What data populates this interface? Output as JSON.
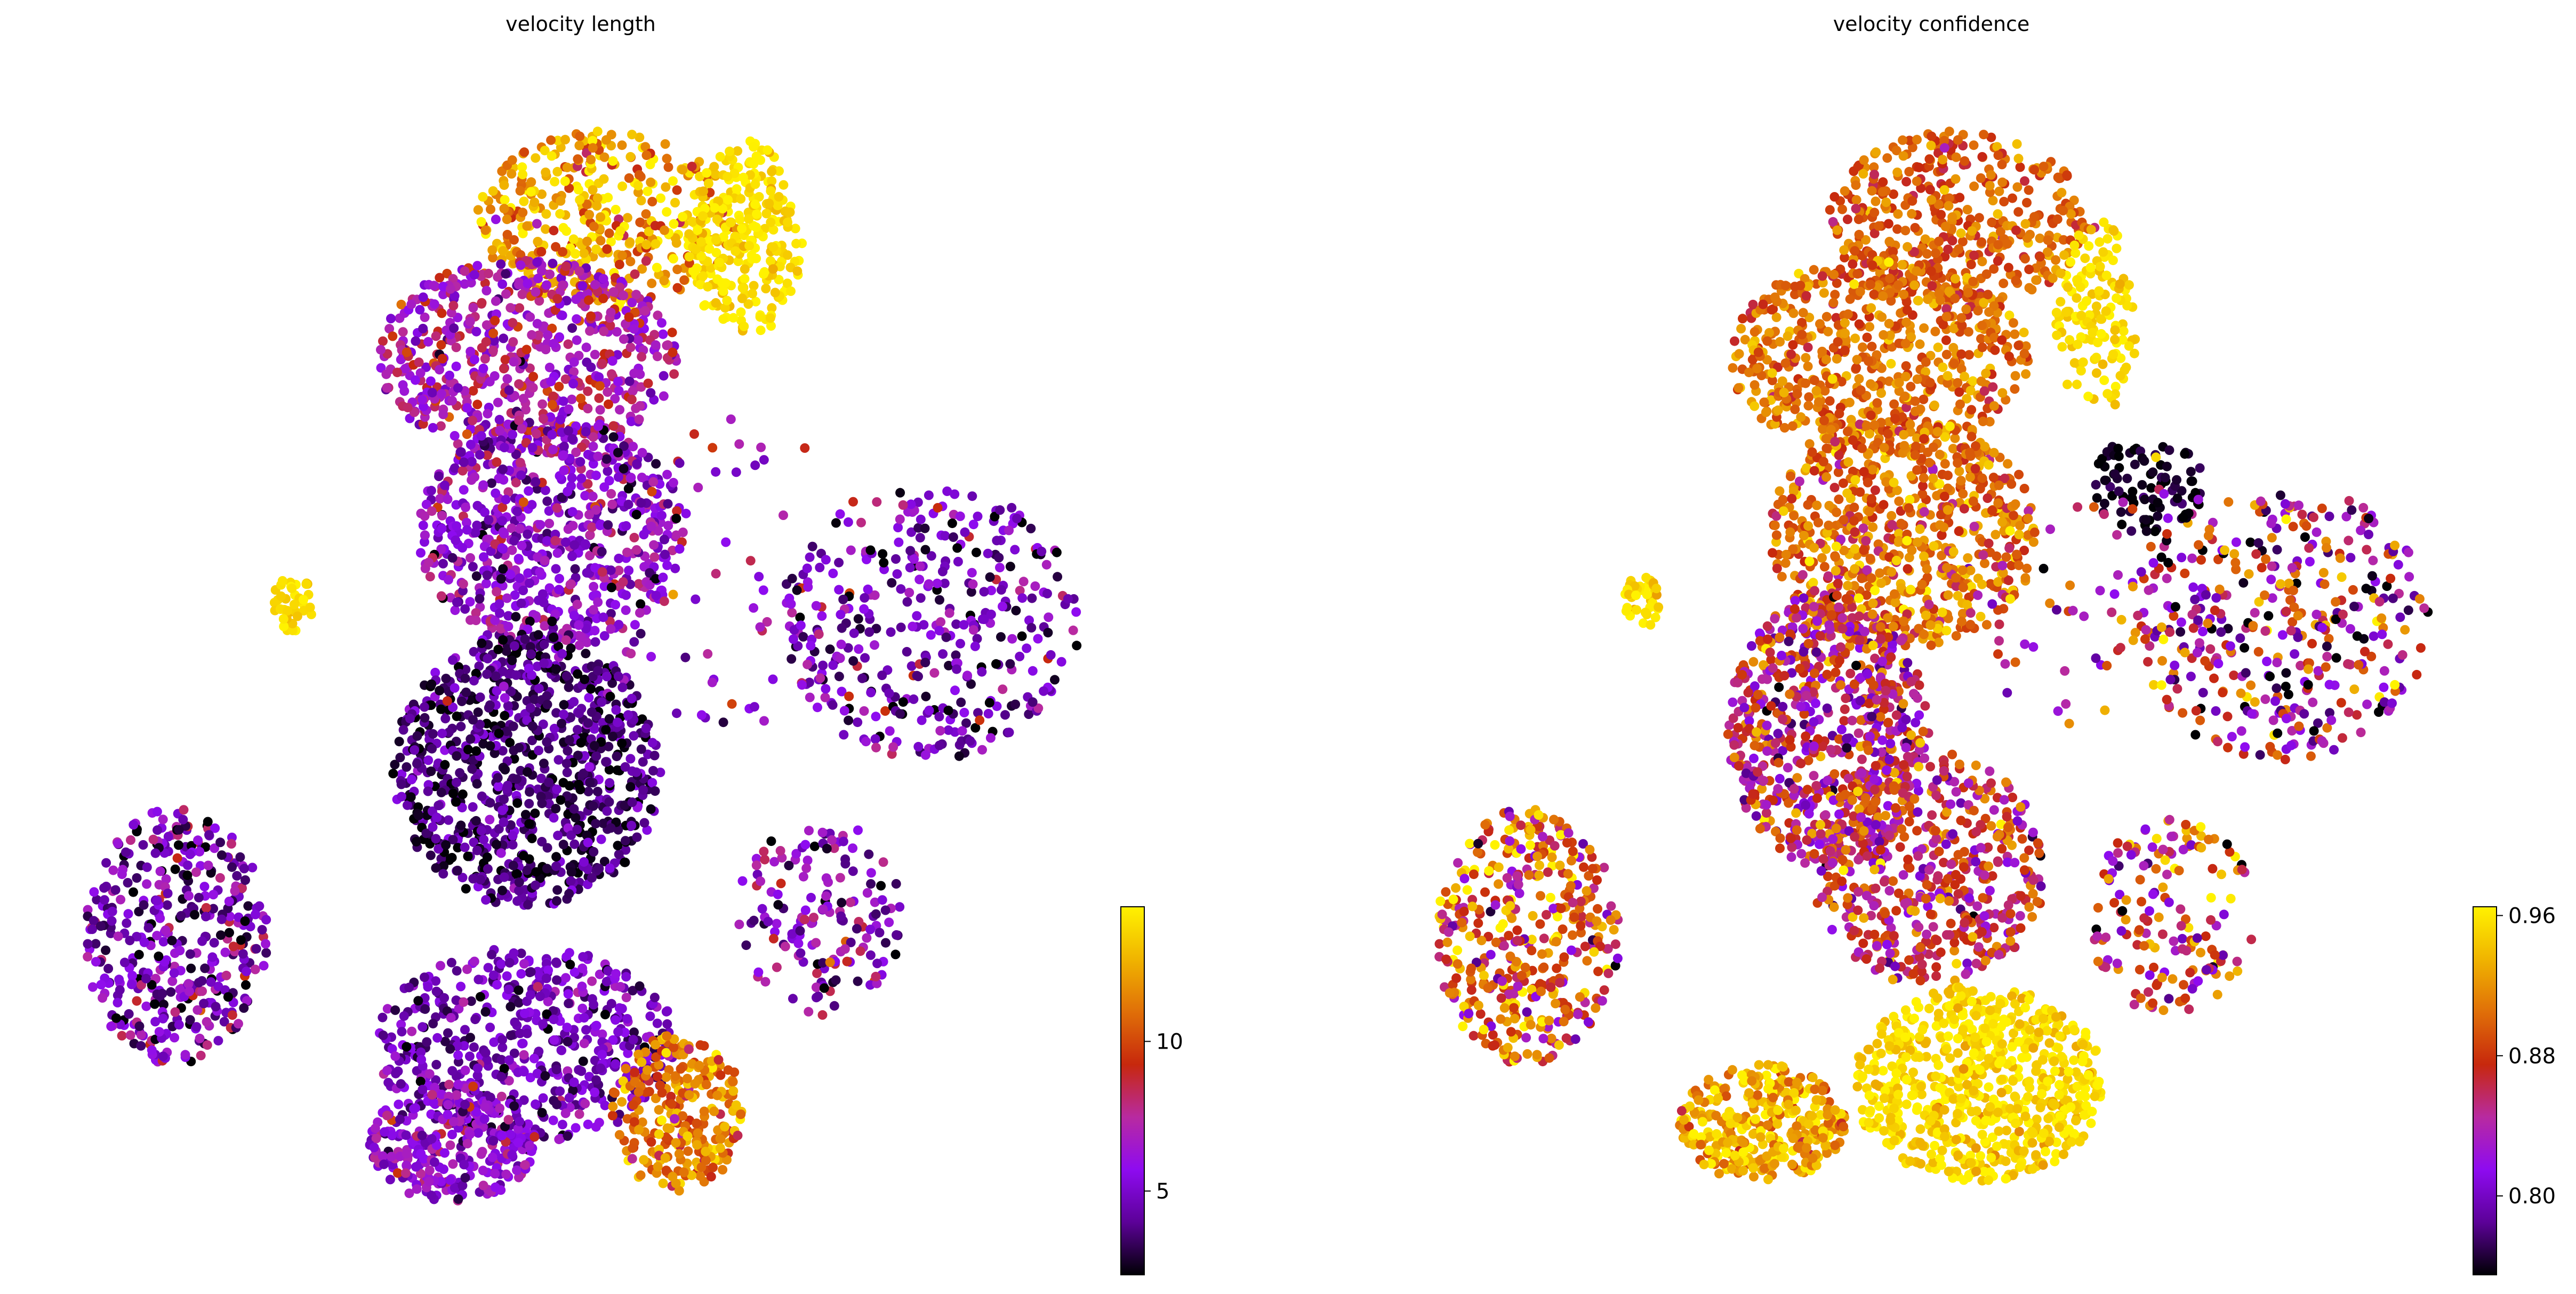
{
  "chart_data": [
    {
      "type": "scatter",
      "title": "velocity length",
      "xlabel": "",
      "ylabel": "",
      "grid": false,
      "axes_visible": false,
      "colormap": [
        "#000004",
        "#5c0198",
        "#8e0bf0",
        "#b82aa0",
        "#c7280d",
        "#e06f08",
        "#f0b400",
        "#fff200"
      ],
      "colorbar": {
        "min": 2.2,
        "max": 14.5,
        "ticks": [
          5,
          10
        ],
        "tick_labels": [
          "5",
          "10"
        ],
        "position": "right"
      },
      "regions": [
        {
          "cx": 1.0,
          "cy": 7.6,
          "rx": 1.6,
          "ry": 0.9,
          "n": 420,
          "mean": 12.5,
          "sd": 2.0
        },
        {
          "cx": 2.6,
          "cy": 7.4,
          "rx": 0.7,
          "ry": 1.0,
          "n": 260,
          "mean": 14.0,
          "sd": 0.7
        },
        {
          "cx": 0.0,
          "cy": 6.2,
          "rx": 1.8,
          "ry": 1.0,
          "n": 620,
          "mean": 7.0,
          "sd": 1.6
        },
        {
          "cx": 0.3,
          "cy": 4.4,
          "rx": 1.6,
          "ry": 1.2,
          "n": 700,
          "mean": 5.8,
          "sd": 1.5
        },
        {
          "cx": 0.0,
          "cy": 2.0,
          "rx": 1.6,
          "ry": 1.4,
          "n": 900,
          "mean": 3.5,
          "sd": 1.2
        },
        {
          "cx": 0.0,
          "cy": -0.8,
          "rx": 1.8,
          "ry": 1.0,
          "n": 560,
          "mean": 4.8,
          "sd": 1.3
        },
        {
          "cx": 1.8,
          "cy": -1.5,
          "rx": 0.8,
          "ry": 0.8,
          "n": 260,
          "mean": 11.0,
          "sd": 1.6
        },
        {
          "cx": -0.9,
          "cy": -1.8,
          "rx": 1.0,
          "ry": 0.6,
          "n": 300,
          "mean": 6.0,
          "sd": 1.5
        },
        {
          "cx": -4.2,
          "cy": 0.3,
          "rx": 1.1,
          "ry": 1.3,
          "n": 420,
          "mean": 5.0,
          "sd": 2.0
        },
        {
          "cx": 4.8,
          "cy": 3.5,
          "rx": 1.8,
          "ry": 1.4,
          "n": 380,
          "mean": 5.0,
          "sd": 1.8
        },
        {
          "cx": 3.5,
          "cy": 0.5,
          "rx": 1.0,
          "ry": 1.0,
          "n": 160,
          "mean": 5.5,
          "sd": 1.8
        },
        {
          "cx": -2.8,
          "cy": 3.7,
          "rx": 0.25,
          "ry": 0.3,
          "n": 40,
          "mean": 14.0,
          "sd": 0.5
        },
        {
          "cx": 2.5,
          "cy": 4.0,
          "rx": 1.6,
          "ry": 1.6,
          "n": 70,
          "mean": 6.0,
          "sd": 2.0
        }
      ]
    },
    {
      "type": "scatter",
      "title": "velocity confidence",
      "xlabel": "",
      "ylabel": "",
      "grid": false,
      "axes_visible": false,
      "colormap": [
        "#000004",
        "#5c0198",
        "#8e0bf0",
        "#b82aa0",
        "#c7280d",
        "#e06f08",
        "#f0b400",
        "#fff200"
      ],
      "colorbar": {
        "min": 0.755,
        "max": 0.965,
        "ticks": [
          0.8,
          0.88,
          0.96
        ],
        "tick_labels": [
          "0.80",
          "0.88",
          "0.96"
        ],
        "position": "right"
      },
      "regions": [
        {
          "cx": 1.0,
          "cy": 7.6,
          "rx": 1.6,
          "ry": 0.9,
          "n": 420,
          "mean": 0.895,
          "sd": 0.02
        },
        {
          "cx": 2.6,
          "cy": 6.6,
          "rx": 0.5,
          "ry": 1.0,
          "n": 140,
          "mean": 0.955,
          "sd": 0.01
        },
        {
          "cx": 0.0,
          "cy": 6.2,
          "rx": 1.8,
          "ry": 1.0,
          "n": 620,
          "mean": 0.905,
          "sd": 0.02
        },
        {
          "cx": 0.3,
          "cy": 4.4,
          "rx": 1.6,
          "ry": 1.2,
          "n": 700,
          "mean": 0.9,
          "sd": 0.03
        },
        {
          "cx": -0.6,
          "cy": 2.4,
          "rx": 1.2,
          "ry": 1.4,
          "n": 700,
          "mean": 0.855,
          "sd": 0.04
        },
        {
          "cx": 0.6,
          "cy": 1.0,
          "rx": 1.4,
          "ry": 1.2,
          "n": 500,
          "mean": 0.865,
          "sd": 0.04
        },
        {
          "cx": 1.2,
          "cy": -1.2,
          "rx": 1.5,
          "ry": 1.0,
          "n": 700,
          "mean": 0.955,
          "sd": 0.015
        },
        {
          "cx": -1.4,
          "cy": -1.6,
          "rx": 1.0,
          "ry": 0.6,
          "n": 360,
          "mean": 0.935,
          "sd": 0.025
        },
        {
          "cx": -4.2,
          "cy": 0.3,
          "rx": 1.1,
          "ry": 1.3,
          "n": 420,
          "mean": 0.89,
          "sd": 0.05
        },
        {
          "cx": 4.8,
          "cy": 3.5,
          "rx": 1.8,
          "ry": 1.4,
          "n": 380,
          "mean": 0.84,
          "sd": 0.06
        },
        {
          "cx": 3.2,
          "cy": 4.9,
          "rx": 0.7,
          "ry": 0.5,
          "n": 90,
          "mean": 0.76,
          "sd": 0.01
        },
        {
          "cx": 3.5,
          "cy": 0.5,
          "rx": 1.0,
          "ry": 1.0,
          "n": 160,
          "mean": 0.87,
          "sd": 0.05
        },
        {
          "cx": -2.8,
          "cy": 3.7,
          "rx": 0.25,
          "ry": 0.3,
          "n": 40,
          "mean": 0.955,
          "sd": 0.01
        },
        {
          "cx": 2.5,
          "cy": 4.0,
          "rx": 1.6,
          "ry": 1.6,
          "n": 70,
          "mean": 0.86,
          "sd": 0.05
        }
      ]
    }
  ]
}
